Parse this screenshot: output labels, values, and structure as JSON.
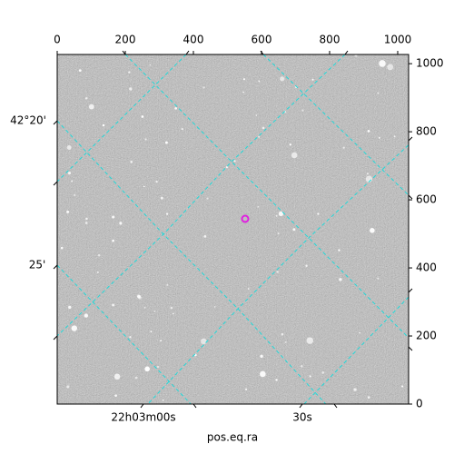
{
  "chart_data": {
    "type": "image",
    "xlabel": "pos.eq.ra",
    "xlim": [
      0,
      1032
    ],
    "xticks": [
      0,
      200,
      400,
      600,
      800,
      1000
    ],
    "ylim": [
      0,
      1027
    ],
    "yticks": [
      0,
      200,
      400,
      600,
      800,
      1000
    ],
    "world_y_labels": [
      "42°20'",
      "25'"
    ],
    "world_x_labels": [
      "22h03m00s",
      "30s"
    ]
  }
}
